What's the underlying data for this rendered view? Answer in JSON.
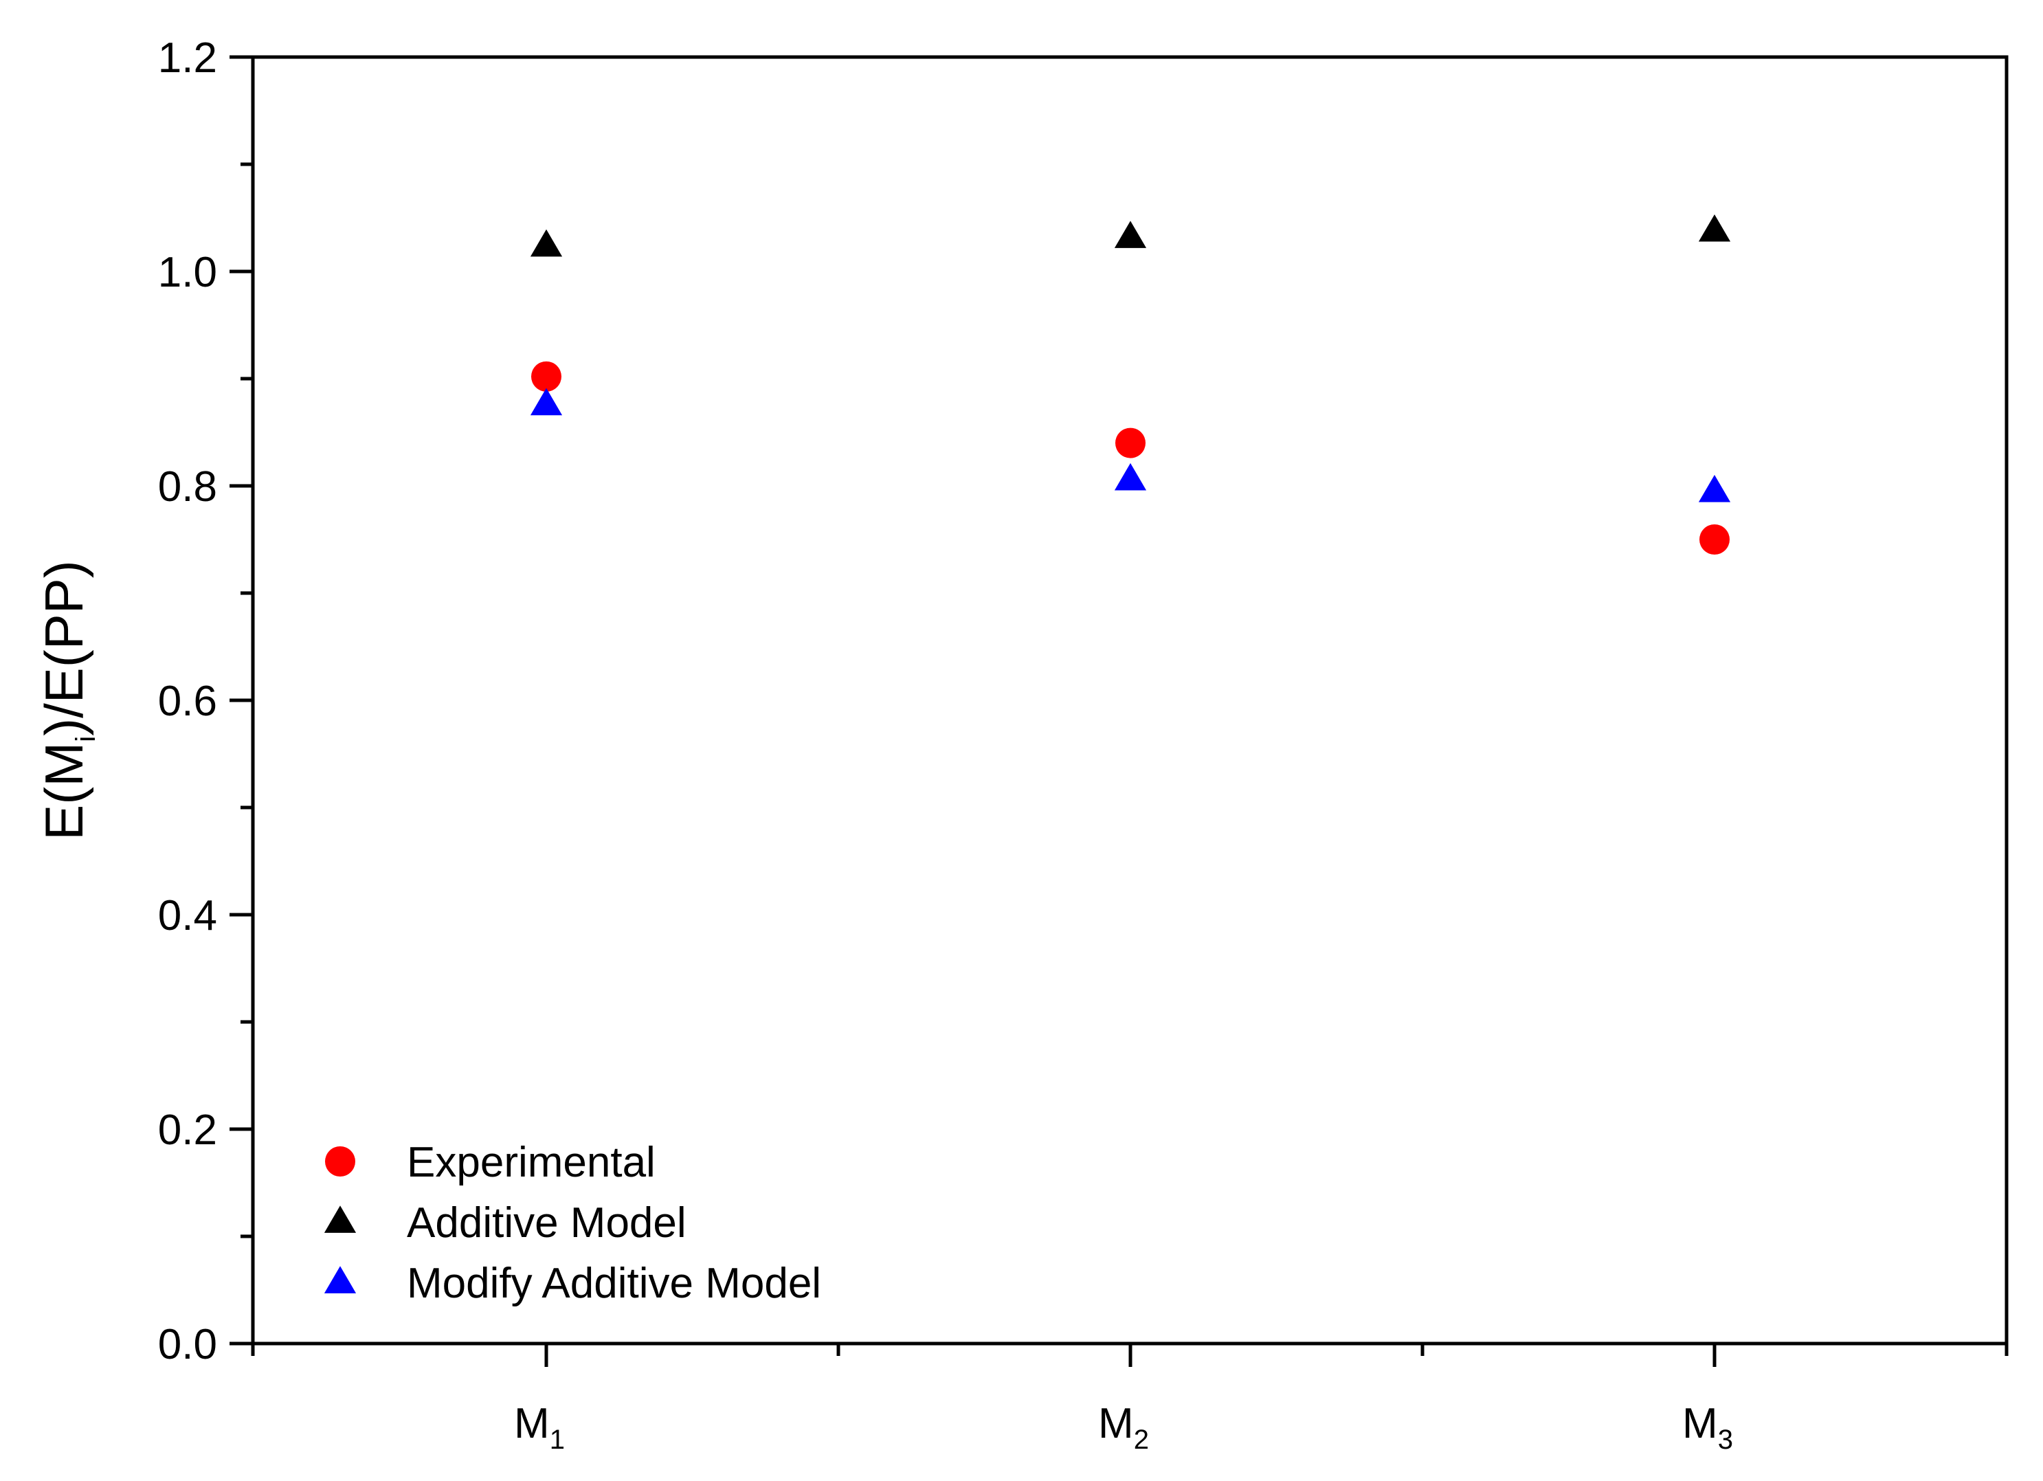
{
  "chart_data": {
    "type": "scatter",
    "categories": [
      "M1",
      "M2",
      "M3"
    ],
    "category_labels": [
      {
        "main": "M",
        "sub": "1"
      },
      {
        "main": "M",
        "sub": "2"
      },
      {
        "main": "M",
        "sub": "3"
      }
    ],
    "ylabel": {
      "before": "E(M",
      "sub": "i",
      "after": ")/E(PP)"
    },
    "xlabel": "",
    "ylim": [
      0.0,
      1.2
    ],
    "yticks": [
      "0.0",
      "0.2",
      "0.4",
      "0.6",
      "0.8",
      "1.0",
      "1.2"
    ],
    "grid": false,
    "legend_position": "bottom-left",
    "series": [
      {
        "name": "Experimental",
        "marker": "circle",
        "color": "#ff0000",
        "values": [
          0.902,
          0.84,
          0.75
        ]
      },
      {
        "name": "Additive Model",
        "marker": "triangle",
        "color": "#000000",
        "values": [
          1.024,
          1.032,
          1.038
        ]
      },
      {
        "name": "Modify Additive Model",
        "marker": "triangle",
        "color": "#0000ff",
        "values": [
          0.876,
          0.806,
          0.795
        ]
      }
    ]
  }
}
